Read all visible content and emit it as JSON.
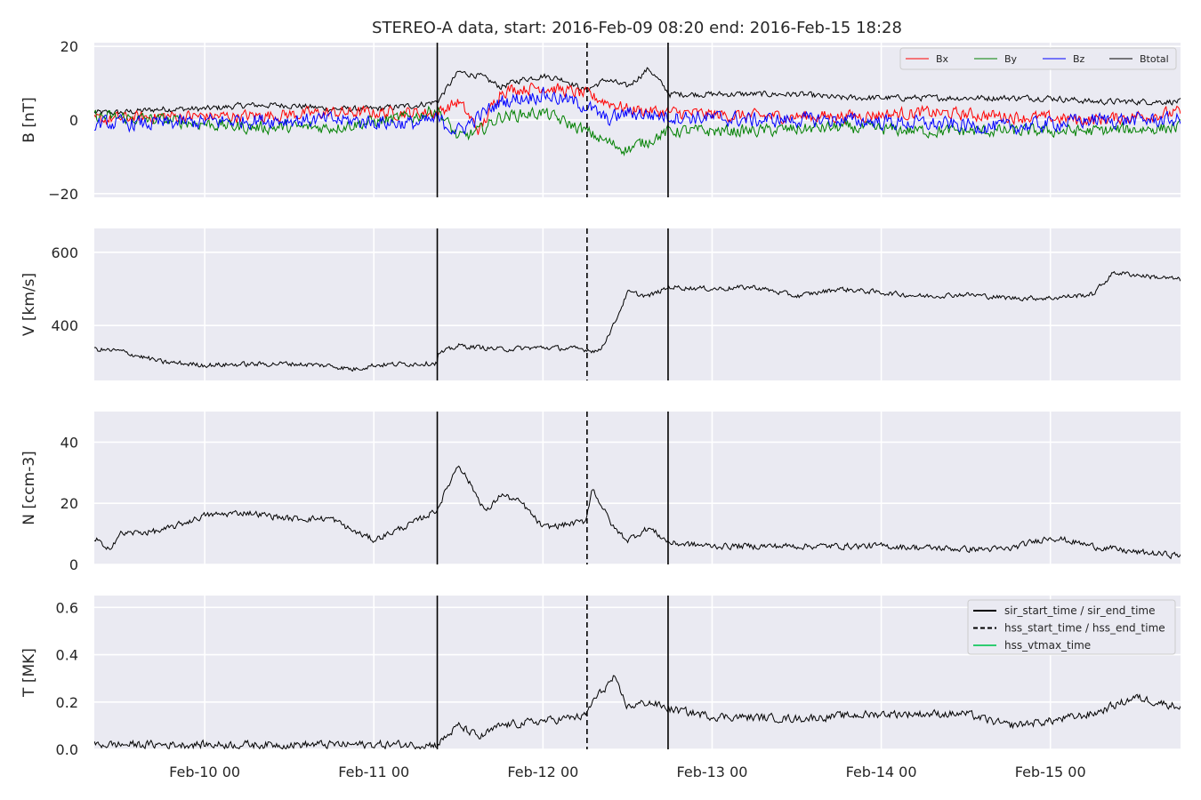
{
  "title": "STEREO-A data, start: 2016-Feb-09 08:20  end: 2016-Feb-15 18:28",
  "colors": {
    "panel_bg": "#EAEAF2",
    "grid": "#FFFFFF",
    "bx": "#FF0000",
    "by": "#008000",
    "bz": "#0000FF",
    "btotal": "#000000",
    "plasma": "#000000",
    "hss_vtmax": "#2ECC71"
  },
  "chart_data": [
    {
      "type": "line",
      "name": "mag",
      "ylabel": "B [nT]",
      "ylim": [
        -21,
        21
      ],
      "yticks": [
        -20,
        0,
        20
      ],
      "ytick_labels": [
        "−20",
        "0",
        "20"
      ],
      "xlim": [
        "2016-02-09 08:20",
        "2016-02-15 18:28"
      ],
      "grid": true,
      "legend": {
        "placement": "top-right",
        "entries": [
          "Bx",
          "By",
          "Bz",
          "Btotal"
        ]
      },
      "series": [
        {
          "name": "Btotal",
          "color": "#000000",
          "x": [
            "2016-02-09 08:20",
            "2016-02-09 12:00",
            "2016-02-09 18:00",
            "2016-02-10 00:00",
            "2016-02-10 06:00",
            "2016-02-10 12:00",
            "2016-02-10 18:00",
            "2016-02-11 00:00",
            "2016-02-11 06:00",
            "2016-02-11 09:00",
            "2016-02-11 12:00",
            "2016-02-11 15:00",
            "2016-02-11 18:00",
            "2016-02-11 21:00",
            "2016-02-12 00:00",
            "2016-02-12 03:00",
            "2016-02-12 06:00",
            "2016-02-12 07:00",
            "2016-02-12 09:00",
            "2016-02-12 12:00",
            "2016-02-12 15:00",
            "2016-02-12 18:00",
            "2016-02-13 00:00",
            "2016-02-13 06:00",
            "2016-02-13 12:00",
            "2016-02-13 18:00",
            "2016-02-14 00:00",
            "2016-02-14 06:00",
            "2016-02-14 12:00",
            "2016-02-14 18:00",
            "2016-02-15 00:00",
            "2016-02-15 06:00",
            "2016-02-15 12:00",
            "2016-02-15 18:28"
          ],
          "values": [
            2,
            2,
            3,
            3,
            4,
            4,
            3,
            3,
            4,
            5,
            13,
            12,
            9,
            11,
            12,
            11,
            8,
            9,
            11,
            9,
            14,
            7,
            7,
            7,
            7,
            6,
            6,
            6,
            6,
            6,
            6,
            5,
            5,
            5
          ],
          "noise": 1.2
        },
        {
          "name": "Bx",
          "color": "#FF0000",
          "x": [
            "2016-02-09 08:20",
            "2016-02-09 18:00",
            "2016-02-10 06:00",
            "2016-02-10 18:00",
            "2016-02-11 06:00",
            "2016-02-11 09:00",
            "2016-02-11 12:00",
            "2016-02-11 15:00",
            "2016-02-11 18:00",
            "2016-02-12 00:00",
            "2016-02-12 06:00",
            "2016-02-12 09:00",
            "2016-02-12 12:00",
            "2016-02-12 18:00",
            "2016-02-13 06:00",
            "2016-02-13 18:00",
            "2016-02-14 06:00",
            "2016-02-14 18:00",
            "2016-02-15 06:00",
            "2016-02-15 18:28"
          ],
          "values": [
            0,
            1,
            1,
            2,
            2,
            2,
            5,
            -3,
            8,
            9,
            7,
            5,
            3,
            2,
            1,
            1,
            2,
            1,
            0,
            2
          ],
          "noise": 2.5
        },
        {
          "name": "By",
          "color": "#008000",
          "x": [
            "2016-02-09 08:20",
            "2016-02-09 18:00",
            "2016-02-10 06:00",
            "2016-02-10 18:00",
            "2016-02-11 06:00",
            "2016-02-11 09:00",
            "2016-02-11 12:00",
            "2016-02-11 15:00",
            "2016-02-11 18:00",
            "2016-02-12 00:00",
            "2016-02-12 06:00",
            "2016-02-12 09:00",
            "2016-02-12 12:00",
            "2016-02-12 18:00",
            "2016-02-13 06:00",
            "2016-02-13 18:00",
            "2016-02-14 06:00",
            "2016-02-14 18:00",
            "2016-02-15 06:00",
            "2016-02-15 18:28"
          ],
          "values": [
            1,
            0,
            -2,
            -2,
            1,
            3,
            -5,
            -3,
            1,
            2,
            -3,
            -6,
            -8,
            -3,
            -3,
            -2,
            -3,
            -3,
            -3,
            -2
          ],
          "noise": 2.5
        },
        {
          "name": "Bz",
          "color": "#0000FF",
          "x": [
            "2016-02-09 08:20",
            "2016-02-09 18:00",
            "2016-02-10 06:00",
            "2016-02-10 18:00",
            "2016-02-11 06:00",
            "2016-02-11 09:00",
            "2016-02-11 12:00",
            "2016-02-11 15:00",
            "2016-02-11 18:00",
            "2016-02-12 00:00",
            "2016-02-12 06:00",
            "2016-02-12 09:00",
            "2016-02-12 12:00",
            "2016-02-12 18:00",
            "2016-02-13 06:00",
            "2016-02-13 18:00",
            "2016-02-14 06:00",
            "2016-02-14 18:00",
            "2016-02-15 06:00",
            "2016-02-15 18:28"
          ],
          "values": [
            -1,
            -1,
            0,
            0,
            -1,
            0,
            -3,
            1,
            5,
            7,
            4,
            0,
            2,
            1,
            0,
            0,
            -1,
            -2,
            0,
            0
          ],
          "noise": 3.0
        }
      ]
    },
    {
      "type": "line",
      "name": "speed",
      "ylabel": "V [km/s]",
      "ylim": [
        250,
        665
      ],
      "yticks": [
        400,
        600
      ],
      "grid": true,
      "series": [
        {
          "name": "V",
          "color": "#000000",
          "x": [
            "2016-02-09 08:20",
            "2016-02-09 12:00",
            "2016-02-09 18:00",
            "2016-02-10 00:00",
            "2016-02-10 12:00",
            "2016-02-10 18:00",
            "2016-02-10 21:00",
            "2016-02-11 00:00",
            "2016-02-11 08:59",
            "2016-02-11 09:01",
            "2016-02-11 12:00",
            "2016-02-11 18:00",
            "2016-02-12 00:00",
            "2016-02-12 06:00",
            "2016-02-12 08:00",
            "2016-02-12 10:00",
            "2016-02-12 12:00",
            "2016-02-12 15:00",
            "2016-02-12 18:00",
            "2016-02-13 00:00",
            "2016-02-13 06:00",
            "2016-02-13 12:00",
            "2016-02-13 18:00",
            "2016-02-14 00:00",
            "2016-02-14 06:00",
            "2016-02-14 12:00",
            "2016-02-14 18:00",
            "2016-02-15 00:00",
            "2016-02-15 06:00",
            "2016-02-15 09:00",
            "2016-02-15 18:28"
          ],
          "values": [
            335,
            330,
            300,
            292,
            296,
            290,
            280,
            292,
            298,
            320,
            345,
            335,
            340,
            335,
            330,
            400,
            490,
            480,
            505,
            500,
            505,
            480,
            500,
            490,
            480,
            485,
            475,
            475,
            485,
            545,
            525
          ],
          "noise": 10
        }
      ]
    },
    {
      "type": "line",
      "name": "density",
      "ylabel": "N [ccm-3]",
      "ylim": [
        0,
        50
      ],
      "yticks": [
        0,
        20,
        40
      ],
      "grid": true,
      "series": [
        {
          "name": "N",
          "color": "#000000",
          "x": [
            "2016-02-09 08:20",
            "2016-02-09 09:00",
            "2016-02-09 10:00",
            "2016-02-09 12:00",
            "2016-02-09 18:00",
            "2016-02-10 00:00",
            "2016-02-10 06:00",
            "2016-02-10 12:00",
            "2016-02-10 18:00",
            "2016-02-10 21:00",
            "2016-02-11 00:00",
            "2016-02-11 06:00",
            "2016-02-11 09:00",
            "2016-02-11 12:00",
            "2016-02-11 16:00",
            "2016-02-11 18:00",
            "2016-02-11 21:00",
            "2016-02-12 00:00",
            "2016-02-12 06:00",
            "2016-02-12 07:00",
            "2016-02-12 10:00",
            "2016-02-12 12:00",
            "2016-02-12 15:00",
            "2016-02-12 18:00",
            "2016-02-13 00:00",
            "2016-02-13 12:00",
            "2016-02-14 00:00",
            "2016-02-14 12:00",
            "2016-02-14 18:00",
            "2016-02-15 00:00",
            "2016-02-15 06:00",
            "2016-02-15 12:00",
            "2016-02-15 18:28"
          ],
          "values": [
            8,
            8,
            4,
            10,
            11,
            16,
            17,
            15,
            15,
            11,
            8,
            14,
            18,
            33,
            17,
            23,
            20,
            12,
            14,
            25,
            12,
            8,
            12,
            7,
            6,
            6,
            6,
            5,
            5,
            9,
            6,
            4,
            3
          ],
          "noise": 1.5
        }
      ]
    },
    {
      "type": "line",
      "name": "temperature",
      "ylabel": "T [MK]",
      "ylim": [
        0,
        0.65
      ],
      "yticks": [
        0.0,
        0.2,
        0.4,
        0.6
      ],
      "ytick_labels": [
        "0.0",
        "0.2",
        "0.4",
        "0.6"
      ],
      "grid": true,
      "legend": {
        "placement": "top-right",
        "entries": [
          "sir_start_time / sir_end_time",
          "hss_start_time / hss_end_time",
          "hss_vtmax_time"
        ]
      },
      "series": [
        {
          "name": "T",
          "color": "#000000",
          "x": [
            "2016-02-09 08:20",
            "2016-02-09 18:00",
            "2016-02-10 06:00",
            "2016-02-10 18:00",
            "2016-02-11 06:00",
            "2016-02-11 09:00",
            "2016-02-11 12:00",
            "2016-02-11 15:00",
            "2016-02-11 18:00",
            "2016-02-12 00:00",
            "2016-02-12 06:00",
            "2016-02-12 07:00",
            "2016-02-12 10:00",
            "2016-02-12 12:00",
            "2016-02-12 15:00",
            "2016-02-12 18:00",
            "2016-02-13 00:00",
            "2016-02-13 12:00",
            "2016-02-14 00:00",
            "2016-02-14 12:00",
            "2016-02-14 18:00",
            "2016-02-15 00:00",
            "2016-02-15 06:00",
            "2016-02-15 12:00",
            "2016-02-15 18:28"
          ],
          "values": [
            0.02,
            0.02,
            0.02,
            0.02,
            0.02,
            0.02,
            0.1,
            0.05,
            0.1,
            0.12,
            0.14,
            0.2,
            0.3,
            0.18,
            0.2,
            0.17,
            0.14,
            0.13,
            0.15,
            0.15,
            0.1,
            0.12,
            0.15,
            0.22,
            0.18
          ],
          "noise": 0.025
        }
      ]
    }
  ],
  "events": {
    "sir_start_time": "2016-02-11 09:00",
    "hss_start_time": "2016-02-12 06:15",
    "sir_end_time": "2016-02-12 17:45"
  },
  "xaxis": {
    "ticks": [
      "2016-02-10 00:00",
      "2016-02-11 00:00",
      "2016-02-12 00:00",
      "2016-02-13 00:00",
      "2016-02-14 00:00",
      "2016-02-15 00:00"
    ],
    "tick_labels": [
      "Feb-10 00",
      "Feb-11 00",
      "Feb-12 00",
      "Feb-13 00",
      "Feb-14 00",
      "Feb-15 00"
    ]
  }
}
